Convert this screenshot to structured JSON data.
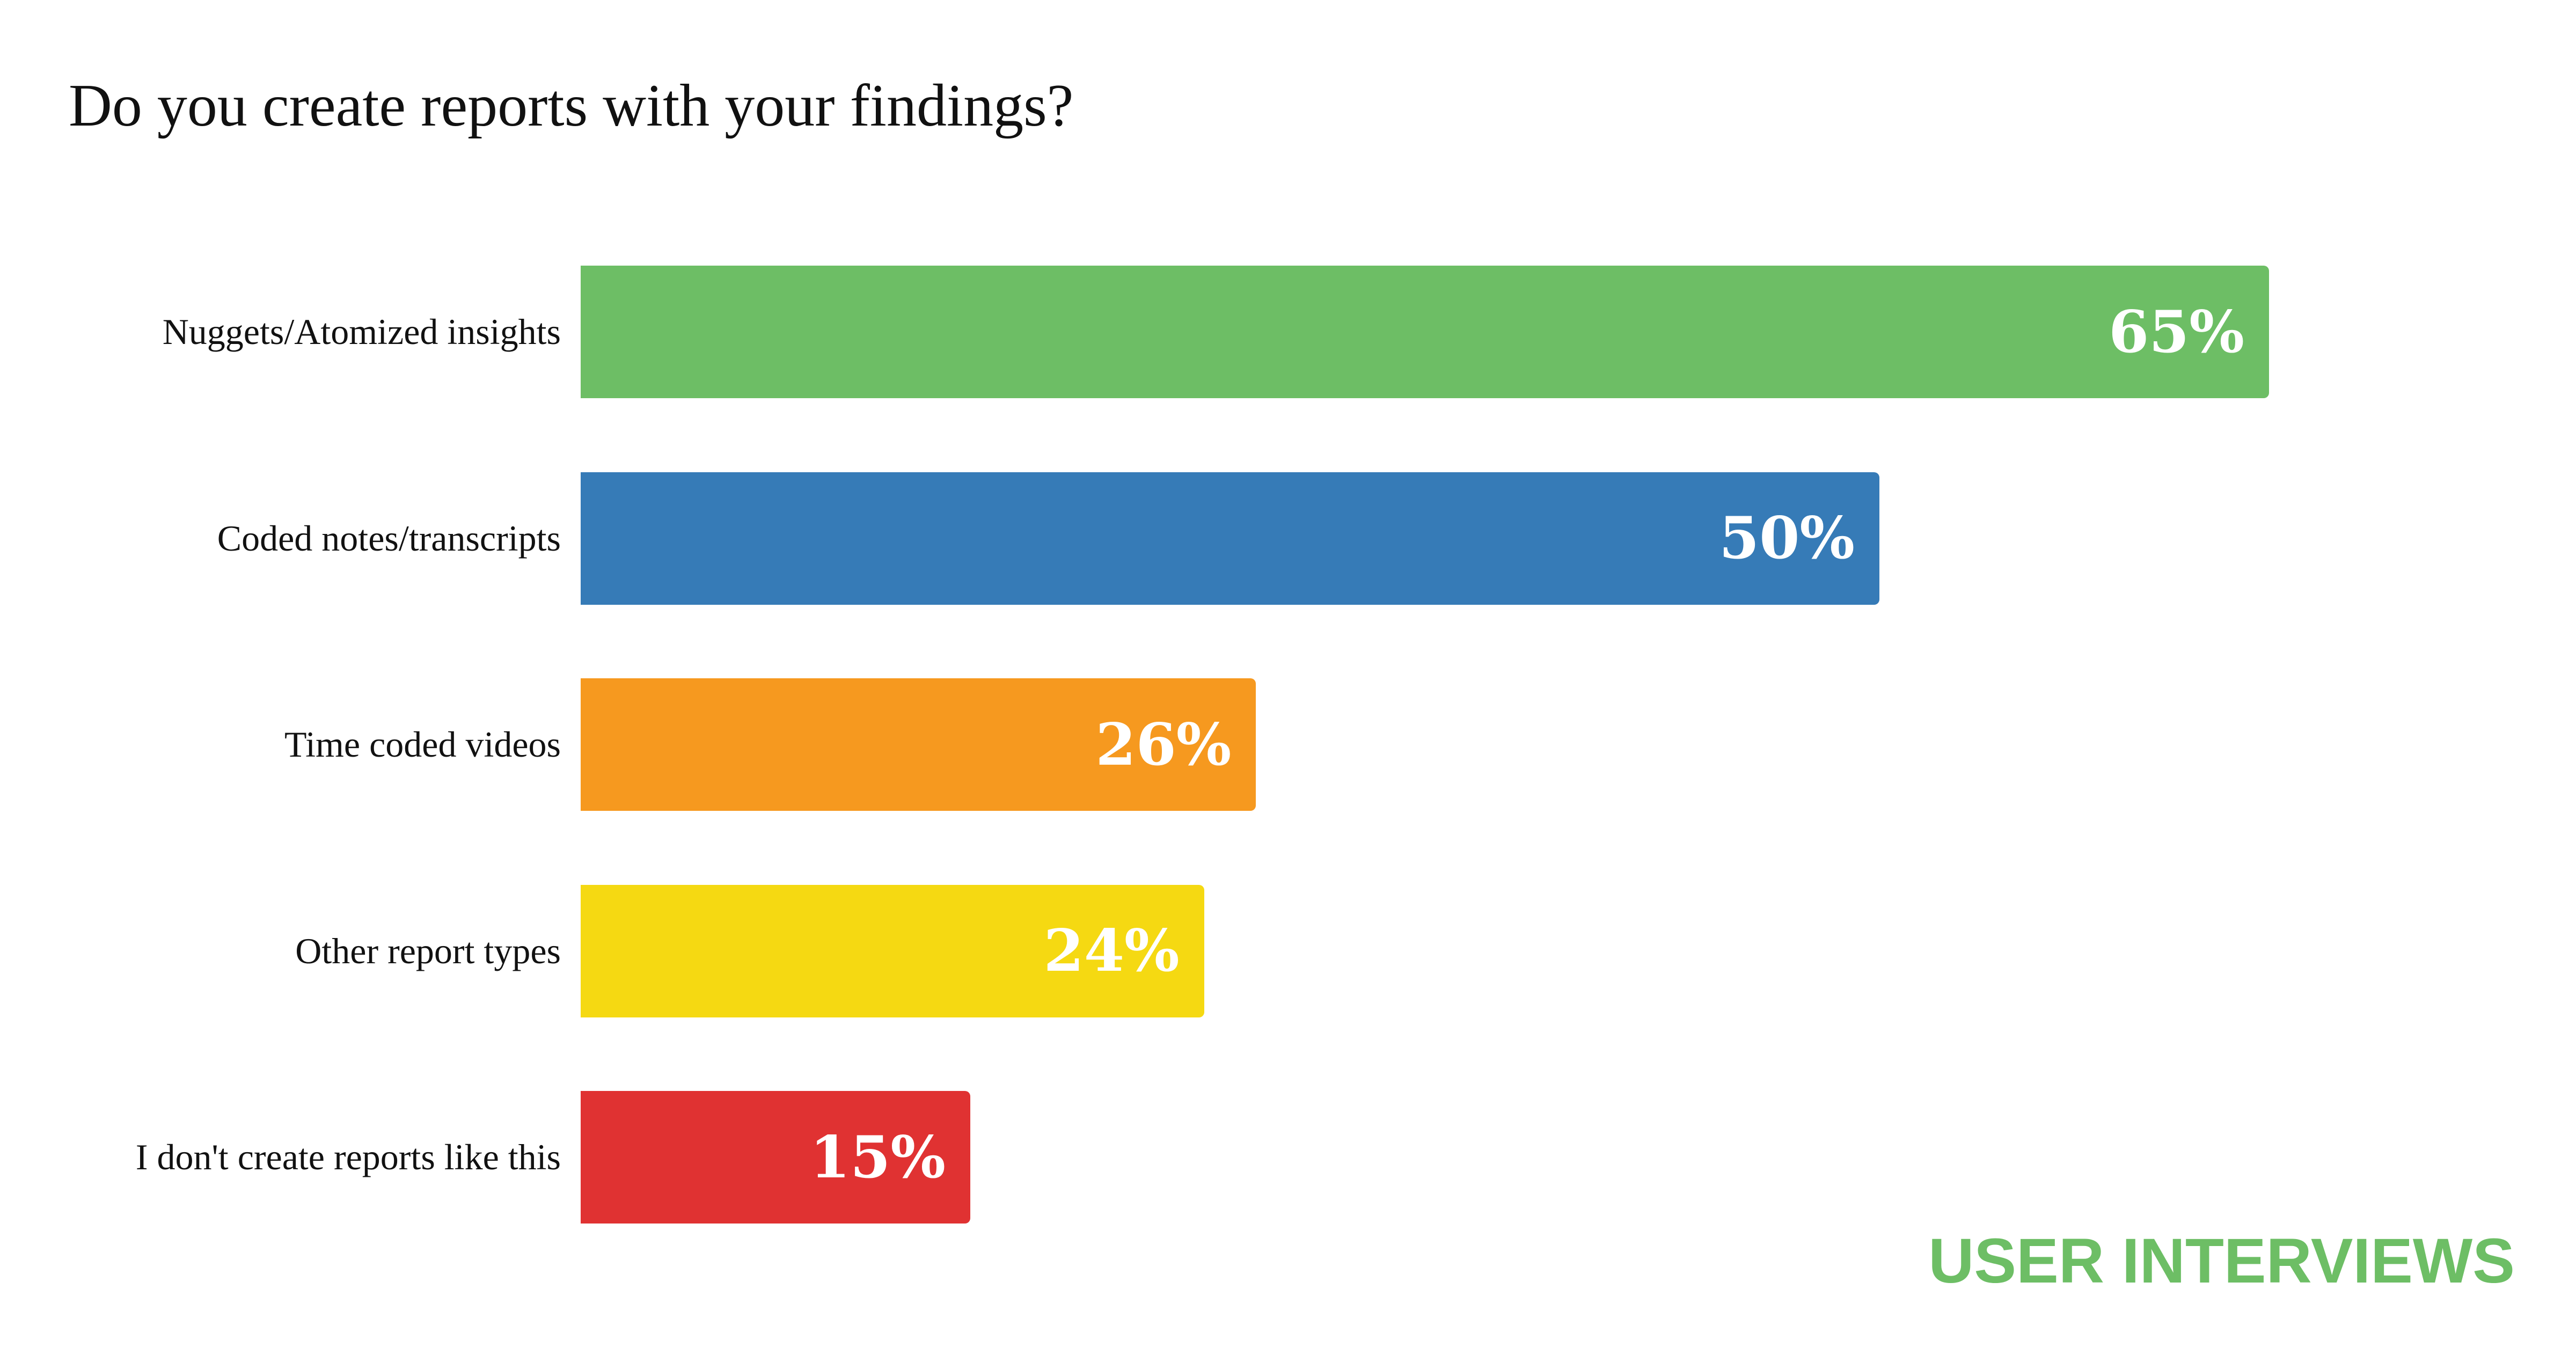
{
  "chart_data": {
    "type": "bar",
    "orientation": "horizontal",
    "title": "Do you create reports with your findings?",
    "categories": [
      "Nuggets/Atomized insights",
      "Coded notes/transcripts",
      "Time coded videos",
      "Other report types",
      "I don't create reports like this"
    ],
    "values": [
      65,
      50,
      26,
      24,
      15
    ],
    "value_labels": [
      "65%",
      "50%",
      "26%",
      "24%",
      "15%"
    ],
    "colors": [
      "#6dbe65",
      "#367bb7",
      "#f6991f",
      "#f5d912",
      "#e03232"
    ],
    "brand": "USER INTERVIEWS"
  }
}
